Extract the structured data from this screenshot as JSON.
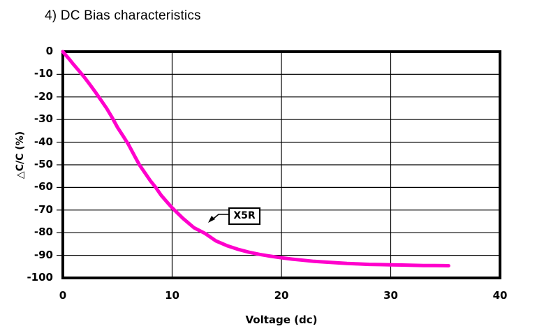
{
  "title": "4) DC Bias characteristics",
  "chart_data": {
    "type": "line",
    "title": "4) DC Bias characteristics",
    "xlabel": "Voltage (dc)",
    "ylabel": "△C/C (%)",
    "xlim": [
      0,
      40
    ],
    "ylim": [
      -100,
      0
    ],
    "x_ticks": [
      0,
      10,
      20,
      30,
      40
    ],
    "y_ticks": [
      0,
      -10,
      -20,
      -30,
      -40,
      -50,
      -60,
      -70,
      -80,
      -90,
      -100
    ],
    "grid": true,
    "legend": "none",
    "line_color": "#FF00CC",
    "frame_color": "#000000",
    "annotation": {
      "label": "X5R"
    },
    "series": [
      {
        "name": "X5R",
        "points": [
          [
            0,
            0
          ],
          [
            0.5,
            -2.8
          ],
          [
            1,
            -5.8
          ],
          [
            1.5,
            -8.6
          ],
          [
            2,
            -11.5
          ],
          [
            2.5,
            -14.7
          ],
          [
            3,
            -18
          ],
          [
            3.5,
            -21.5
          ],
          [
            4,
            -25
          ],
          [
            4.5,
            -29
          ],
          [
            5,
            -33.5
          ],
          [
            5.5,
            -37.2
          ],
          [
            6,
            -41
          ],
          [
            6.5,
            -45.5
          ],
          [
            7,
            -50
          ],
          [
            7.5,
            -53.5
          ],
          [
            8,
            -57
          ],
          [
            8.5,
            -60
          ],
          [
            9,
            -63.5
          ],
          [
            9.5,
            -66.3
          ],
          [
            10,
            -69
          ],
          [
            11,
            -73.7
          ],
          [
            12,
            -77.8
          ],
          [
            13,
            -80.3
          ],
          [
            14,
            -83.6
          ],
          [
            15,
            -85.7
          ],
          [
            16,
            -87.3
          ],
          [
            17,
            -88.6
          ],
          [
            18,
            -89.6
          ],
          [
            19,
            -90.4
          ],
          [
            20,
            -91.1
          ],
          [
            21,
            -91.7
          ],
          [
            22,
            -92.2
          ],
          [
            23,
            -92.7
          ],
          [
            24,
            -93
          ],
          [
            25,
            -93.3
          ],
          [
            26,
            -93.6
          ],
          [
            27,
            -93.8
          ],
          [
            28,
            -94
          ],
          [
            29,
            -94.1
          ],
          [
            30,
            -94.2
          ],
          [
            31,
            -94.3
          ],
          [
            32,
            -94.4
          ],
          [
            33,
            -94.5
          ],
          [
            34,
            -94.55
          ],
          [
            35.3,
            -94.6
          ]
        ]
      }
    ]
  }
}
